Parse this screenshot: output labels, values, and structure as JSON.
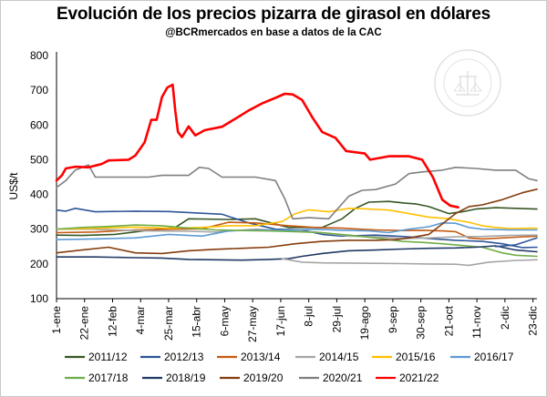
{
  "chart_data": {
    "type": "line",
    "title": "Evolución de los precios pizarra de girasol en dólares",
    "subtitle": "@BCRmercados  en base a datos de la CAC",
    "ylabel": "US$/t",
    "xlabel": "",
    "ylim": [
      100,
      800
    ],
    "yticks": [
      100,
      200,
      300,
      400,
      500,
      600,
      700,
      800
    ],
    "xlim": [
      1,
      361
    ],
    "xticks": [
      {
        "day": 1,
        "label": "1-ene"
      },
      {
        "day": 22,
        "label": "22-ene"
      },
      {
        "day": 43,
        "label": "12-feb"
      },
      {
        "day": 64,
        "label": "4-mar"
      },
      {
        "day": 85,
        "label": "25-mar"
      },
      {
        "day": 106,
        "label": "15-abr"
      },
      {
        "day": 127,
        "label": "6-may"
      },
      {
        "day": 148,
        "label": "27-may"
      },
      {
        "day": 169,
        "label": "17-jun"
      },
      {
        "day": 190,
        "label": "8-jul"
      },
      {
        "day": 211,
        "label": "29-jul"
      },
      {
        "day": 232,
        "label": "19-ago"
      },
      {
        "day": 253,
        "label": "9-sep"
      },
      {
        "day": 274,
        "label": "30-sep"
      },
      {
        "day": 295,
        "label": "21-oct"
      },
      {
        "day": 316,
        "label": "11-nov"
      },
      {
        "day": 337,
        "label": "2-dic"
      },
      {
        "day": 358,
        "label": "23-dic"
      }
    ],
    "grid": false,
    "legend_position": "bottom",
    "series": [
      {
        "name": "2011/12",
        "color": "#375623",
        "points": [
          [
            1,
            283
          ],
          [
            20,
            282
          ],
          [
            45,
            285
          ],
          [
            70,
            297
          ],
          [
            90,
            305
          ],
          [
            100,
            330
          ],
          [
            130,
            328
          ],
          [
            150,
            330
          ],
          [
            175,
            305
          ],
          [
            200,
            305
          ],
          [
            215,
            330
          ],
          [
            225,
            360
          ],
          [
            235,
            378
          ],
          [
            250,
            380
          ],
          [
            262,
            375
          ],
          [
            270,
            373
          ],
          [
            280,
            365
          ],
          [
            295,
            345
          ],
          [
            305,
            350
          ],
          [
            315,
            358
          ],
          [
            330,
            362
          ],
          [
            345,
            360
          ],
          [
            361,
            358
          ]
        ]
      },
      {
        "name": "2012/13",
        "color": "#2f5597",
        "points": [
          [
            1,
            355
          ],
          [
            8,
            352
          ],
          [
            15,
            360
          ],
          [
            30,
            350
          ],
          [
            60,
            352
          ],
          [
            85,
            351
          ],
          [
            100,
            348
          ],
          [
            115,
            345
          ],
          [
            125,
            343
          ],
          [
            145,
            318
          ],
          [
            165,
            300
          ],
          [
            185,
            298
          ],
          [
            200,
            285
          ],
          [
            215,
            280
          ],
          [
            240,
            283
          ],
          [
            260,
            279
          ],
          [
            285,
            272
          ],
          [
            300,
            268
          ],
          [
            320,
            265
          ],
          [
            335,
            258
          ],
          [
            350,
            247
          ],
          [
            361,
            248
          ]
        ]
      },
      {
        "name": "2013/14",
        "color": "#c55a11",
        "points": [
          [
            1,
            290
          ],
          [
            30,
            292
          ],
          [
            60,
            298
          ],
          [
            90,
            300
          ],
          [
            110,
            301
          ],
          [
            130,
            320
          ],
          [
            150,
            318
          ],
          [
            175,
            310
          ],
          [
            195,
            305
          ],
          [
            215,
            303
          ],
          [
            240,
            298
          ],
          [
            260,
            296
          ],
          [
            275,
            297
          ],
          [
            290,
            295
          ],
          [
            300,
            293
          ],
          [
            310,
            275
          ],
          [
            320,
            272
          ],
          [
            335,
            275
          ],
          [
            345,
            277
          ],
          [
            361,
            280
          ]
        ]
      },
      {
        "name": "2014/15",
        "color": "#a5a5a5",
        "points": [
          [
            1,
            300
          ],
          [
            25,
            300
          ],
          [
            45,
            298
          ],
          [
            70,
            295
          ],
          [
            100,
            294
          ],
          [
            120,
            292
          ],
          [
            150,
            300
          ],
          [
            175,
            295
          ],
          [
            195,
            292
          ],
          [
            220,
            280
          ],
          [
            240,
            278
          ],
          [
            260,
            273
          ],
          [
            280,
            275
          ],
          [
            300,
            278
          ],
          [
            320,
            279
          ],
          [
            340,
            282
          ],
          [
            361,
            283
          ]
        ]
      },
      {
        "name": "2015/16",
        "color": "#ffc000",
        "points": [
          [
            1,
            300
          ],
          [
            25,
            302
          ],
          [
            60,
            306
          ],
          [
            85,
            303
          ],
          [
            110,
            305
          ],
          [
            130,
            310
          ],
          [
            150,
            310
          ],
          [
            170,
            322
          ],
          [
            180,
            345
          ],
          [
            190,
            356
          ],
          [
            205,
            350
          ],
          [
            220,
            360
          ],
          [
            235,
            358
          ],
          [
            250,
            355
          ],
          [
            265,
            345
          ],
          [
            280,
            335
          ],
          [
            295,
            330
          ],
          [
            310,
            320
          ],
          [
            320,
            310
          ],
          [
            330,
            305
          ],
          [
            340,
            302
          ],
          [
            361,
            303
          ]
        ]
      },
      {
        "name": "2016/17",
        "color": "#5b9bd5",
        "points": [
          [
            1,
            270
          ],
          [
            30,
            272
          ],
          [
            60,
            275
          ],
          [
            85,
            285
          ],
          [
            110,
            280
          ],
          [
            130,
            295
          ],
          [
            155,
            298
          ],
          [
            175,
            297
          ],
          [
            195,
            300
          ],
          [
            215,
            297
          ],
          [
            235,
            295
          ],
          [
            250,
            290
          ],
          [
            265,
            300
          ],
          [
            280,
            307
          ],
          [
            290,
            318
          ],
          [
            300,
            317
          ],
          [
            310,
            305
          ],
          [
            320,
            300
          ],
          [
            340,
            298
          ],
          [
            361,
            298
          ]
        ]
      },
      {
        "name": "2017/18",
        "color": "#70ad47",
        "points": [
          [
            1,
            300
          ],
          [
            20,
            305
          ],
          [
            40,
            308
          ],
          [
            60,
            312
          ],
          [
            80,
            310
          ],
          [
            100,
            303
          ],
          [
            120,
            298
          ],
          [
            140,
            296
          ],
          [
            160,
            295
          ],
          [
            180,
            293
          ],
          [
            200,
            290
          ],
          [
            220,
            283
          ],
          [
            240,
            275
          ],
          [
            260,
            265
          ],
          [
            275,
            262
          ],
          [
            290,
            258
          ],
          [
            305,
            253
          ],
          [
            320,
            248
          ],
          [
            335,
            232
          ],
          [
            345,
            225
          ],
          [
            361,
            222
          ]
        ]
      },
      {
        "name": "2018/19",
        "color": "#203864",
        "points": [
          [
            1,
            220
          ],
          [
            30,
            220
          ],
          [
            60,
            218
          ],
          [
            80,
            217
          ],
          [
            100,
            213
          ],
          [
            120,
            212
          ],
          [
            140,
            211
          ],
          [
            160,
            213
          ],
          [
            175,
            215
          ],
          [
            185,
            222
          ],
          [
            200,
            230
          ],
          [
            220,
            238
          ],
          [
            240,
            240
          ],
          [
            260,
            243
          ],
          [
            280,
            245
          ],
          [
            300,
            246
          ],
          [
            315,
            248
          ],
          [
            330,
            252
          ],
          [
            345,
            240
          ],
          [
            361,
            235
          ]
        ]
      },
      {
        "name": "2019/20",
        "color": "#843c0c",
        "points": [
          [
            1,
            232
          ],
          [
            20,
            240
          ],
          [
            40,
            248
          ],
          [
            60,
            232
          ],
          [
            80,
            230
          ],
          [
            100,
            238
          ],
          [
            120,
            242
          ],
          [
            140,
            245
          ],
          [
            160,
            248
          ],
          [
            180,
            258
          ],
          [
            200,
            265
          ],
          [
            220,
            268
          ],
          [
            240,
            268
          ],
          [
            255,
            270
          ],
          [
            265,
            275
          ],
          [
            280,
            285
          ],
          [
            290,
            315
          ],
          [
            300,
            345
          ],
          [
            310,
            365
          ],
          [
            320,
            370
          ],
          [
            335,
            385
          ],
          [
            350,
            405
          ],
          [
            361,
            415
          ]
        ]
      },
      {
        "name": "2020/21",
        "color": "#7f7f7f",
        "points": [
          [
            1,
            420
          ],
          [
            8,
            440
          ],
          [
            15,
            470
          ],
          [
            25,
            485
          ],
          [
            30,
            450
          ],
          [
            45,
            450
          ],
          [
            70,
            450
          ],
          [
            80,
            455
          ],
          [
            100,
            455
          ],
          [
            108,
            478
          ],
          [
            115,
            475
          ],
          [
            125,
            450
          ],
          [
            150,
            450
          ],
          [
            165,
            440
          ],
          [
            172,
            388
          ],
          [
            178,
            330
          ],
          [
            190,
            333
          ],
          [
            205,
            330
          ],
          [
            220,
            395
          ],
          [
            230,
            412
          ],
          [
            240,
            414
          ],
          [
            255,
            430
          ],
          [
            265,
            460
          ],
          [
            275,
            465
          ],
          [
            290,
            470
          ],
          [
            300,
            478
          ],
          [
            315,
            475
          ],
          [
            330,
            470
          ],
          [
            345,
            470
          ],
          [
            355,
            445
          ],
          [
            361,
            440
          ]
        ]
      },
      {
        "name": "2021/22",
        "color": "#ff0000",
        "points": [
          [
            1,
            440
          ],
          [
            5,
            455
          ],
          [
            8,
            475
          ],
          [
            15,
            480
          ],
          [
            25,
            478
          ],
          [
            35,
            488
          ],
          [
            40,
            498
          ],
          [
            55,
            500
          ],
          [
            60,
            512
          ],
          [
            67,
            550
          ],
          [
            72,
            615
          ],
          [
            76,
            615
          ],
          [
            80,
            680
          ],
          [
            84,
            708
          ],
          [
            88,
            716
          ],
          [
            90,
            640
          ],
          [
            92,
            580
          ],
          [
            95,
            565
          ],
          [
            100,
            596
          ],
          [
            105,
            570
          ],
          [
            112,
            585
          ],
          [
            125,
            595
          ],
          [
            135,
            618
          ],
          [
            145,
            642
          ],
          [
            155,
            662
          ],
          [
            165,
            678
          ],
          [
            172,
            690
          ],
          [
            178,
            688
          ],
          [
            185,
            672
          ],
          [
            193,
            620
          ],
          [
            200,
            580
          ],
          [
            210,
            563
          ],
          [
            218,
            525
          ],
          [
            232,
            518
          ],
          [
            236,
            500
          ],
          [
            250,
            510
          ],
          [
            265,
            510
          ],
          [
            275,
            500
          ],
          [
            283,
            450
          ],
          [
            290,
            385
          ],
          [
            296,
            368
          ],
          [
            302,
            363
          ]
        ]
      },
      {
        "name": "",
        "color": "#a5a5a5",
        "points": [
          [
            170,
            215
          ],
          [
            185,
            205
          ],
          [
            200,
            203
          ],
          [
            230,
            202
          ],
          [
            260,
            201
          ],
          [
            280,
            200
          ],
          [
            300,
            199
          ],
          [
            310,
            196
          ],
          [
            325,
            205
          ],
          [
            345,
            210
          ],
          [
            361,
            212
          ]
        ]
      },
      {
        "name": "",
        "color": "#2f5597",
        "points": [
          [
            330,
            250
          ],
          [
            345,
            255
          ],
          [
            361,
            275
          ]
        ]
      }
    ]
  },
  "watermark": "BOLSA DE COMERCIO DE ROSARIO"
}
